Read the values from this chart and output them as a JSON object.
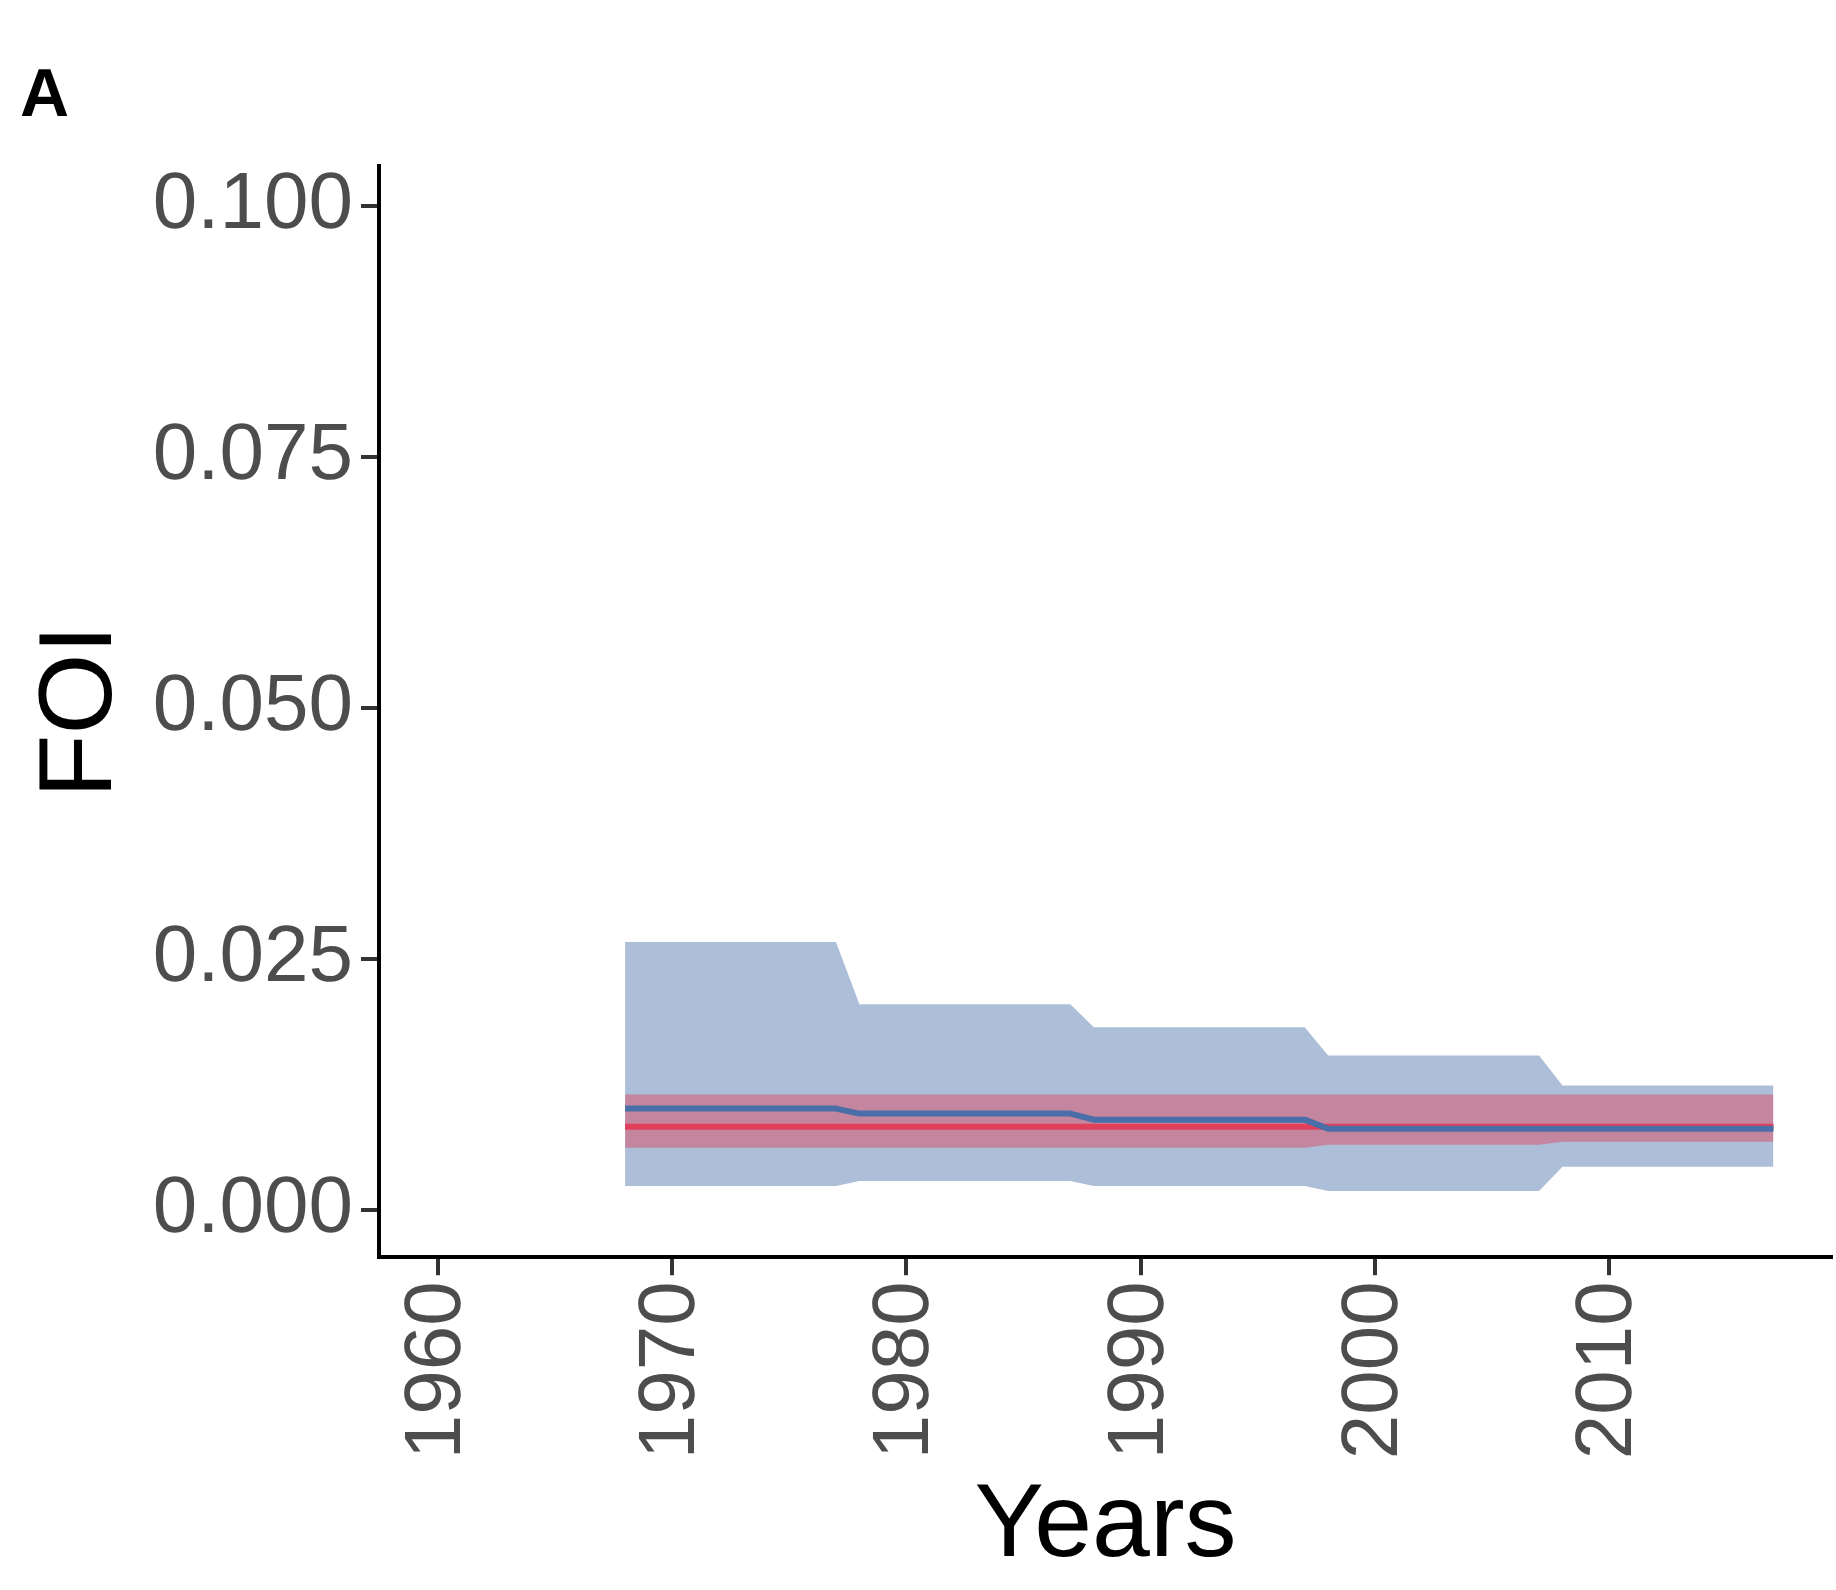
{
  "chart_data": {
    "type": "line",
    "title": "A",
    "xlabel": "Years",
    "ylabel": "FOI",
    "xlim": [
      1957.5,
      2019.5
    ],
    "xticks": [
      1960,
      1970,
      1980,
      1990,
      2000,
      2010
    ],
    "ylim": [
      -0.0047,
      0.104
    ],
    "yticks": [
      {
        "value": 0,
        "label": "0.000"
      },
      {
        "value": 0.025,
        "label": "0.025"
      },
      {
        "value": 0.05,
        "label": "0.050"
      },
      {
        "value": 0.075,
        "label": "0.075"
      },
      {
        "value": 0.1,
        "label": "0.100"
      }
    ],
    "grid": false,
    "legend": false,
    "marker": "none",
    "line_style": "solid",
    "series": [
      {
        "color": "#4a6ea8",
        "x": [
          1968,
          1977,
          1978,
          1987,
          1988,
          1997,
          1998,
          2007,
          2008,
          2017
        ],
        "values": [
          0.0101,
          0.0101,
          0.0096,
          0.0096,
          0.009,
          0.009,
          0.0081,
          0.0081,
          0.0081,
          0.0081
        ],
        "lower": [
          0.0024,
          0.0024,
          0.0029,
          0.0029,
          0.0024,
          0.0024,
          0.0019,
          0.0019,
          0.0043,
          0.0043
        ],
        "upper": [
          0.0267,
          0.0267,
          0.0205,
          0.0205,
          0.0182,
          0.0182,
          0.0154,
          0.0154,
          0.0124,
          0.0124
        ]
      },
      {
        "color": "#e0405a",
        "x": [
          1968,
          1977,
          1978,
          1987,
          1988,
          1997,
          1998,
          2007,
          2008,
          2017
        ],
        "values": [
          0.0083,
          0.0083,
          0.0083,
          0.0083,
          0.0083,
          0.0083,
          0.0083,
          0.0083,
          0.0083,
          0.0083
        ],
        "lower": [
          0.0062,
          0.0062,
          0.0062,
          0.0062,
          0.0062,
          0.0062,
          0.0065,
          0.0065,
          0.0068,
          0.0068
        ],
        "upper": [
          0.0115,
          0.0115,
          0.0115,
          0.0115,
          0.0115,
          0.0115,
          0.0115,
          0.0115,
          0.0115,
          0.0115
        ]
      }
    ]
  }
}
